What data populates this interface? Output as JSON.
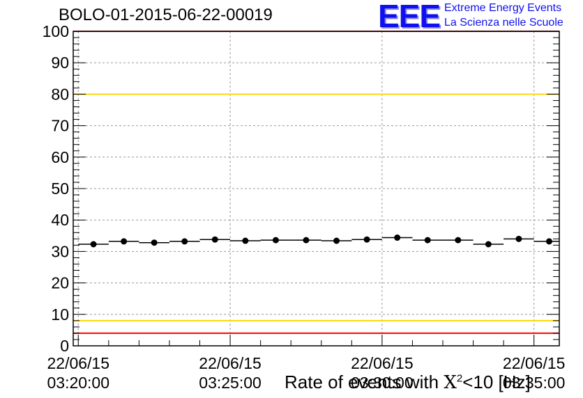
{
  "header": {
    "title": "BOLO-01-2015-06-22-00019",
    "logo": {
      "letters": "EEE",
      "line1": "Extreme Energy Events",
      "line2": "La Scienza nelle Scuole"
    }
  },
  "chart_data": {
    "type": "scatter",
    "title": "BOLO-01-2015-06-22-00019",
    "xlabel_prefix": "Rate of events with ",
    "xlabel_symbol": "X",
    "xlabel_sup": "2",
    "xlabel_suffix": "<10 [Hz]",
    "ylabel": "",
    "ylim": [
      0,
      100
    ],
    "y_ticks": [
      "0",
      "10",
      "20",
      "30",
      "40",
      "50",
      "60",
      "70",
      "80",
      "90",
      "100"
    ],
    "x_ticks": [
      {
        "date": "22/06/15",
        "time": "03:20:00"
      },
      {
        "date": "22/06/15",
        "time": "03:25:00"
      },
      {
        "date": "22/06/15",
        "time": "03:30:00"
      },
      {
        "date": "22/06/15",
        "time": "03:35:00"
      }
    ],
    "x_range_minutes": [
      "03:19:50",
      "03:35:50"
    ],
    "grid": true,
    "series": [
      {
        "x": [
          "03:20:30",
          "03:21:30",
          "03:22:30",
          "03:23:30",
          "03:24:30",
          "03:25:30",
          "03:26:30",
          "03:27:30",
          "03:28:30",
          "03:29:30",
          "03:30:30",
          "03:31:30",
          "03:32:30",
          "03:33:30",
          "03:34:30",
          "03:35:30"
        ],
        "values": [
          32.3,
          33.2,
          32.8,
          33.2,
          33.8,
          33.4,
          33.6,
          33.6,
          33.4,
          33.8,
          34.4,
          33.6,
          33.6,
          32.3,
          34.0,
          33.2
        ],
        "bin_width_seconds": 60,
        "color": "#000000"
      }
    ],
    "reference_lines": [
      {
        "y": 100,
        "color": "#ff0000"
      },
      {
        "y": 80,
        "color": "#ffd700"
      },
      {
        "y": 8,
        "color": "#ffd700"
      },
      {
        "y": 4,
        "color": "#ff0000"
      }
    ]
  }
}
